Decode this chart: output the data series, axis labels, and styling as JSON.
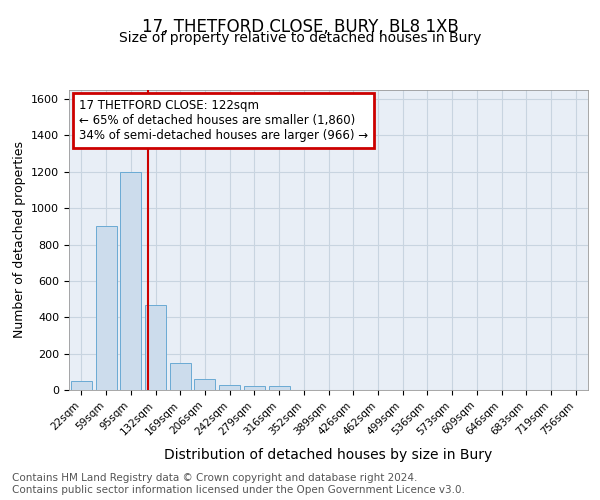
{
  "title1": "17, THETFORD CLOSE, BURY, BL8 1XB",
  "title2": "Size of property relative to detached houses in Bury",
  "xlabel": "Distribution of detached houses by size in Bury",
  "ylabel": "Number of detached properties",
  "bar_labels": [
    "22sqm",
    "59sqm",
    "95sqm",
    "132sqm",
    "169sqm",
    "206sqm",
    "242sqm",
    "279sqm",
    "316sqm",
    "352sqm",
    "389sqm",
    "426sqm",
    "462sqm",
    "499sqm",
    "536sqm",
    "573sqm",
    "609sqm",
    "646sqm",
    "683sqm",
    "719sqm",
    "756sqm"
  ],
  "bar_heights": [
    50,
    900,
    1200,
    470,
    150,
    60,
    30,
    20,
    20,
    0,
    0,
    0,
    0,
    0,
    0,
    0,
    0,
    0,
    0,
    0,
    0
  ],
  "bar_color": "#ccdcec",
  "bar_edge_color": "#6aaad4",
  "bar_width": 0.85,
  "ylim": [
    0,
    1650
  ],
  "yticks": [
    0,
    200,
    400,
    600,
    800,
    1000,
    1200,
    1400,
    1600
  ],
  "vline_color": "#cc0000",
  "annotation_line1": "17 THETFORD CLOSE: 122sqm",
  "annotation_line2": "← 65% of detached houses are smaller (1,860)",
  "annotation_line3": "34% of semi-detached houses are larger (966) →",
  "annotation_box_color": "#cc0000",
  "annotation_fontsize": 8.5,
  "grid_color": "#c8d4e0",
  "background_color": "#e8eef6",
  "footer_text": "Contains HM Land Registry data © Crown copyright and database right 2024.\nContains public sector information licensed under the Open Government Licence v3.0.",
  "title1_fontsize": 12,
  "title2_fontsize": 10,
  "xlabel_fontsize": 10,
  "ylabel_fontsize": 9,
  "footer_fontsize": 7.5
}
